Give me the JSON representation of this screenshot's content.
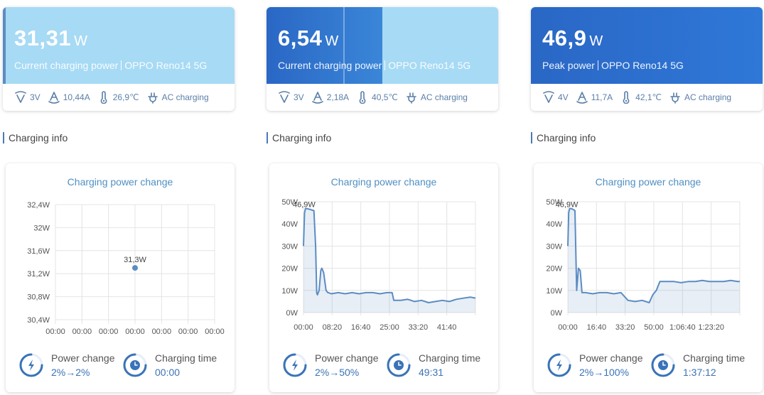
{
  "panels": [
    {
      "power_value": "31,31",
      "power_unit": "W",
      "subtitle_label": "Current charging power",
      "device": "OPPO Reno14 5G",
      "voltage": "3V",
      "current": "10,44A",
      "temperature": "26,9℃",
      "charge_type": "AC charging",
      "section_title": "Charging info",
      "chart_title": "Charging power change",
      "power_change_label": "Power change",
      "power_change_value": "2%→2%",
      "charging_time_label": "Charging time",
      "charging_time_value": "00:00",
      "colors": {
        "hero": "#a7daf4",
        "accent": "#5b8cc2"
      }
    },
    {
      "power_value": "6,54",
      "power_unit": "W",
      "subtitle_label": "Current charging power",
      "device": "OPPO Reno14 5G",
      "voltage": "3V",
      "current": "2,18A",
      "temperature": "40,5℃",
      "charge_type": "AC charging",
      "section_title": "Charging info",
      "chart_title": "Charging power change",
      "power_change_label": "Power change",
      "power_change_value": "2%→50%",
      "charging_time_label": "Charging time",
      "charging_time_value": "49:31",
      "colors": {
        "hero": "#a7daf4",
        "accent": "#2f6fc7"
      }
    },
    {
      "power_value": "46,9",
      "power_unit": "W",
      "subtitle_label": "Peak power",
      "device": "OPPO Reno14 5G",
      "voltage": "4V",
      "current": "11,7A",
      "temperature": "42,1℃",
      "charge_type": "AC charging",
      "section_title": "Charging info",
      "chart_title": "Charging power change",
      "power_change_label": "Power change",
      "power_change_value": "2%→100%",
      "charging_time_label": "Charging time",
      "charging_time_value": "1:37:12",
      "colors": {
        "hero": "#2c6fd4",
        "accent": "#2c6fd4"
      }
    }
  ],
  "icons": [
    "voltage-icon",
    "current-icon",
    "thermometer-icon",
    "plug-icon",
    "bolt-icon",
    "clock-icon"
  ],
  "chart_data": [
    {
      "type": "scatter",
      "y_ticks": [
        "32,4W",
        "32W",
        "31,6W",
        "31,2W",
        "30,8W",
        "30,4W"
      ],
      "x_ticks": [
        "00:00",
        "00:00",
        "00:00",
        "00:00",
        "00:00",
        "00:00",
        "00:00"
      ],
      "ylim": [
        30.4,
        32.4
      ],
      "points": [
        [
          0,
          31.3
        ]
      ],
      "annotation": "31,3W",
      "grid": true
    },
    {
      "type": "area",
      "y_ticks": [
        "50W",
        "40W",
        "30W",
        "20W",
        "10W",
        "0W"
      ],
      "x_ticks": [
        "00:00",
        "08:20",
        "16:40",
        "25:00",
        "33:20",
        "41:40"
      ],
      "ylim": [
        0,
        50
      ],
      "xlim_minutes": [
        0,
        49.5
      ],
      "annotation": "46,9W",
      "x": [
        0,
        0.3,
        0.6,
        1,
        2,
        3,
        3.5,
        3.8,
        4,
        4.5,
        5,
        5.3,
        5.8,
        6.5,
        7,
        7.2,
        8,
        10,
        12,
        14,
        16,
        18,
        20,
        22,
        24,
        25.5,
        26,
        28,
        30,
        32,
        34,
        36,
        38,
        40,
        42,
        44,
        46,
        48,
        49.5
      ],
      "y": [
        30,
        45,
        47,
        46.9,
        46.5,
        46,
        30,
        9,
        8,
        10,
        19,
        20,
        18,
        10,
        9,
        9,
        8.5,
        9,
        8.5,
        9,
        8.5,
        9,
        9,
        8.5,
        9,
        9,
        5.5,
        5.5,
        6,
        5,
        5.5,
        4.5,
        5,
        5.5,
        5,
        6,
        6.5,
        7,
        6.54
      ],
      "grid": true
    },
    {
      "type": "area",
      "y_ticks": [
        "50W",
        "40W",
        "30W",
        "20W",
        "10W",
        "0W"
      ],
      "x_ticks": [
        "00:00",
        "16:40",
        "33:20",
        "50:00",
        "1:06:40",
        "1:23:20"
      ],
      "ylim": [
        0,
        50
      ],
      "xlim_minutes": [
        0,
        97.2
      ],
      "annotation": "46,9W",
      "x": [
        0,
        0.5,
        1,
        2,
        3,
        4,
        5,
        6,
        7,
        8,
        10,
        14,
        18,
        22,
        26,
        30,
        34,
        38,
        42,
        46,
        48,
        50,
        52,
        56,
        60,
        64,
        68,
        72,
        76,
        80,
        84,
        88,
        92,
        96,
        97.2
      ],
      "y": [
        30,
        45,
        47,
        46.9,
        46.5,
        46,
        10,
        20,
        19,
        9,
        9,
        8.5,
        9,
        9,
        8.5,
        9,
        5.5,
        5,
        5.5,
        4.5,
        8,
        10,
        14,
        14,
        14,
        13.5,
        14,
        14,
        14.5,
        14,
        14,
        14,
        14.5,
        14,
        14
      ],
      "grid": true
    }
  ]
}
